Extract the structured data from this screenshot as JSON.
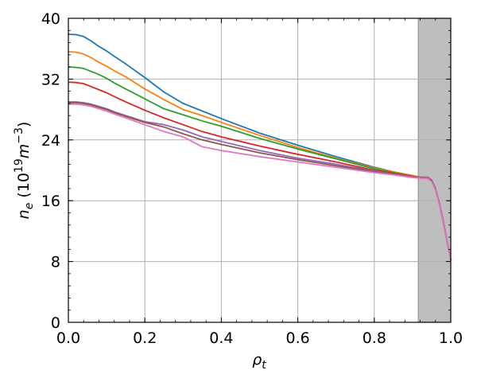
{
  "chart_data": {
    "type": "line",
    "xlabel_base": "ρ",
    "xlabel_sub": "t",
    "ylabel_parts": {
      "base": "n",
      "sub": "e",
      "unit_open": "(10",
      "unit_exp1": "19",
      "unit_mid": "m",
      "unit_exp2": "−3",
      "unit_close": ")"
    },
    "xlim": [
      0.0,
      1.0
    ],
    "ylim": [
      0,
      40
    ],
    "x_ticks": [
      "0.0",
      "0.2",
      "0.4",
      "0.6",
      "0.8",
      "1.0"
    ],
    "y_ticks": [
      "0",
      "8",
      "16",
      "24",
      "32",
      "40"
    ],
    "grid": true,
    "shaded_region": {
      "x_start": 0.915,
      "x_end": 1.0,
      "color": "#bebebe"
    },
    "series": [
      {
        "color": "#1f77b4",
        "x": [
          0,
          0.02,
          0.04,
          0.06,
          0.08,
          0.1,
          0.12,
          0.15,
          0.2,
          0.25,
          0.3,
          0.35,
          0.4,
          0.5,
          0.6,
          0.7,
          0.8,
          0.85,
          0.9,
          0.92,
          0.94,
          0.95,
          0.96,
          0.97,
          0.98,
          0.99,
          1.0
        ],
        "y": [
          37.9,
          37.85,
          37.6,
          37.0,
          36.3,
          35.7,
          35.0,
          34.0,
          32.2,
          30.3,
          28.8,
          27.8,
          26.8,
          24.9,
          23.3,
          21.8,
          20.4,
          19.8,
          19.3,
          19.1,
          19.1,
          18.7,
          17.6,
          15.7,
          13.4,
          10.7,
          8.2
        ]
      },
      {
        "color": "#ff7f0e",
        "x": [
          0,
          0.02,
          0.04,
          0.06,
          0.08,
          0.1,
          0.12,
          0.15,
          0.2,
          0.25,
          0.3,
          0.35,
          0.4,
          0.5,
          0.6,
          0.7,
          0.8,
          0.85,
          0.9,
          0.92,
          0.94,
          0.95,
          0.96,
          0.97,
          0.98,
          0.99,
          1.0
        ],
        "y": [
          35.6,
          35.55,
          35.3,
          34.8,
          34.2,
          33.7,
          33.1,
          32.3,
          30.7,
          29.3,
          28.0,
          27.2,
          26.3,
          24.6,
          23.0,
          21.6,
          20.3,
          19.8,
          19.3,
          19.1,
          19.05,
          18.6,
          17.5,
          15.6,
          13.3,
          10.6,
          8.2
        ]
      },
      {
        "color": "#2ca02c",
        "x": [
          0,
          0.02,
          0.04,
          0.06,
          0.08,
          0.1,
          0.12,
          0.15,
          0.2,
          0.25,
          0.3,
          0.35,
          0.4,
          0.5,
          0.6,
          0.7,
          0.8,
          0.85,
          0.9,
          0.92,
          0.94,
          0.95,
          0.96,
          0.97,
          0.98,
          0.99,
          1.0
        ],
        "y": [
          33.6,
          33.55,
          33.4,
          33.0,
          32.6,
          32.1,
          31.5,
          30.7,
          29.4,
          28.1,
          27.3,
          26.5,
          25.8,
          24.2,
          22.8,
          21.5,
          20.2,
          19.7,
          19.2,
          19.05,
          19.0,
          18.6,
          17.5,
          15.6,
          13.3,
          10.6,
          8.2
        ]
      },
      {
        "color": "#d62728",
        "x": [
          0,
          0.02,
          0.04,
          0.06,
          0.08,
          0.1,
          0.12,
          0.15,
          0.2,
          0.25,
          0.3,
          0.35,
          0.4,
          0.5,
          0.6,
          0.7,
          0.8,
          0.85,
          0.9,
          0.92,
          0.94,
          0.95,
          0.96,
          0.97,
          0.98,
          0.99,
          1.0
        ],
        "y": [
          31.6,
          31.55,
          31.4,
          31.0,
          30.6,
          30.2,
          29.7,
          29.0,
          27.9,
          26.9,
          26.0,
          25.1,
          24.4,
          23.2,
          22.1,
          21.1,
          20.0,
          19.6,
          19.2,
          19.05,
          19.0,
          18.6,
          17.5,
          15.6,
          13.3,
          10.6,
          8.2
        ]
      },
      {
        "color": "#9467bd",
        "x": [
          0,
          0.02,
          0.04,
          0.06,
          0.08,
          0.1,
          0.12,
          0.15,
          0.2,
          0.25,
          0.3,
          0.35,
          0.4,
          0.5,
          0.6,
          0.7,
          0.8,
          0.85,
          0.9,
          0.92,
          0.94,
          0.95,
          0.96,
          0.97,
          0.98,
          0.99,
          1.0
        ],
        "y": [
          29.0,
          29.0,
          28.9,
          28.7,
          28.4,
          28.1,
          27.7,
          27.2,
          26.4,
          26.0,
          25.3,
          24.4,
          23.8,
          22.6,
          21.6,
          20.8,
          19.9,
          19.5,
          19.15,
          19.05,
          19.0,
          18.6,
          17.5,
          15.6,
          13.3,
          10.6,
          8.2
        ]
      },
      {
        "color": "#8c564b",
        "x": [
          0,
          0.02,
          0.04,
          0.06,
          0.08,
          0.1,
          0.12,
          0.15,
          0.2,
          0.25,
          0.3,
          0.35,
          0.4,
          0.5,
          0.6,
          0.7,
          0.8,
          0.85,
          0.9,
          0.92,
          0.94,
          0.95,
          0.96,
          0.97,
          0.98,
          0.99,
          1.0
        ],
        "y": [
          28.9,
          28.9,
          28.8,
          28.6,
          28.3,
          28.0,
          27.6,
          27.1,
          26.3,
          25.7,
          24.8,
          24.0,
          23.4,
          22.3,
          21.4,
          20.6,
          19.8,
          19.45,
          19.1,
          19.0,
          18.95,
          18.6,
          17.5,
          15.6,
          13.3,
          10.6,
          8.2
        ]
      },
      {
        "color": "#e377c2",
        "x": [
          0,
          0.02,
          0.04,
          0.06,
          0.08,
          0.1,
          0.12,
          0.15,
          0.2,
          0.25,
          0.3,
          0.35,
          0.4,
          0.5,
          0.6,
          0.7,
          0.8,
          0.85,
          0.9,
          0.92,
          0.94,
          0.95,
          0.96,
          0.97,
          0.98,
          0.99,
          1.0
        ],
        "y": [
          28.7,
          28.7,
          28.6,
          28.4,
          28.1,
          27.8,
          27.4,
          26.9,
          26.0,
          25.1,
          24.4,
          23.1,
          22.6,
          21.8,
          21.1,
          20.4,
          19.7,
          19.4,
          19.05,
          18.95,
          18.9,
          18.5,
          17.4,
          15.5,
          13.2,
          10.5,
          8.1
        ]
      }
    ]
  }
}
